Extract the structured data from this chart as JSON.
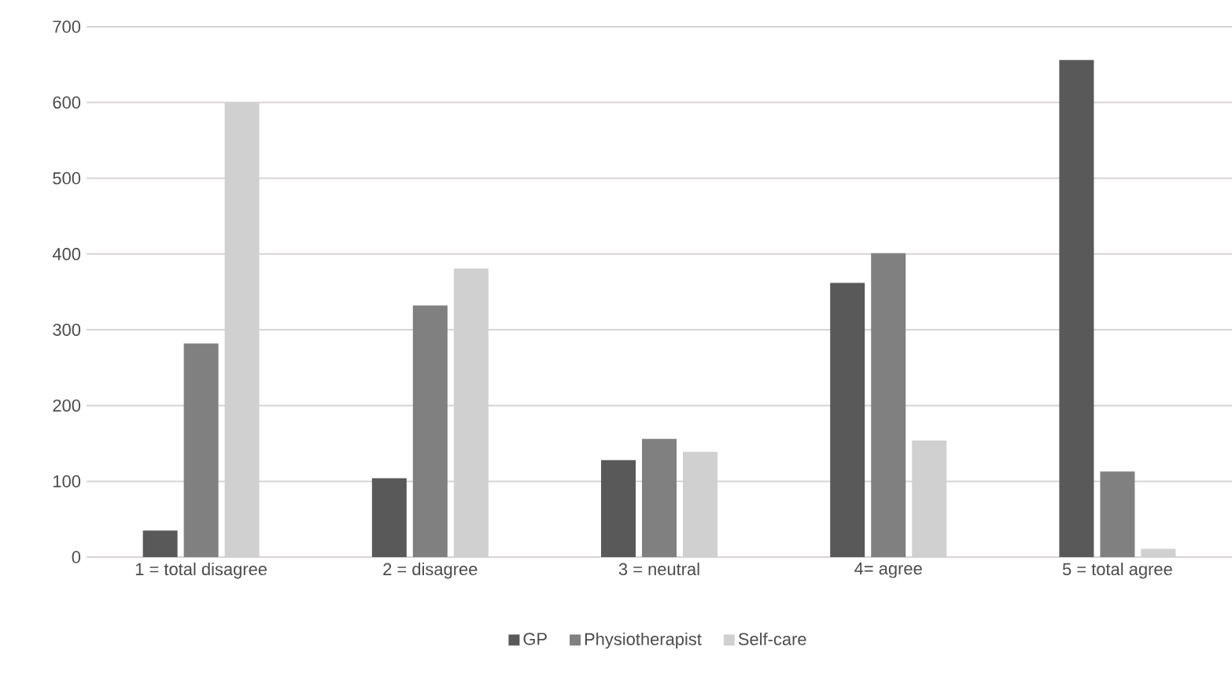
{
  "chart_data": {
    "type": "bar",
    "categories": [
      "1 = total disagree",
      "2 = disagree",
      "3 = neutral",
      "4= agree",
      "5 = total agree"
    ],
    "series": [
      {
        "name": "GP",
        "color": "#595959",
        "values": [
          35,
          104,
          128,
          362,
          656
        ]
      },
      {
        "name": "Physiotherapist",
        "color": "#808080",
        "values": [
          282,
          332,
          156,
          401,
          113
        ]
      },
      {
        "name": "Self-care",
        "color": "#d0d0d0",
        "values": [
          600,
          381,
          139,
          154,
          11
        ]
      }
    ],
    "ylim": [
      0,
      700
    ],
    "yticks": [
      0,
      100,
      200,
      300,
      400,
      500,
      600,
      700
    ],
    "grid": "y",
    "legend": "bottom"
  }
}
